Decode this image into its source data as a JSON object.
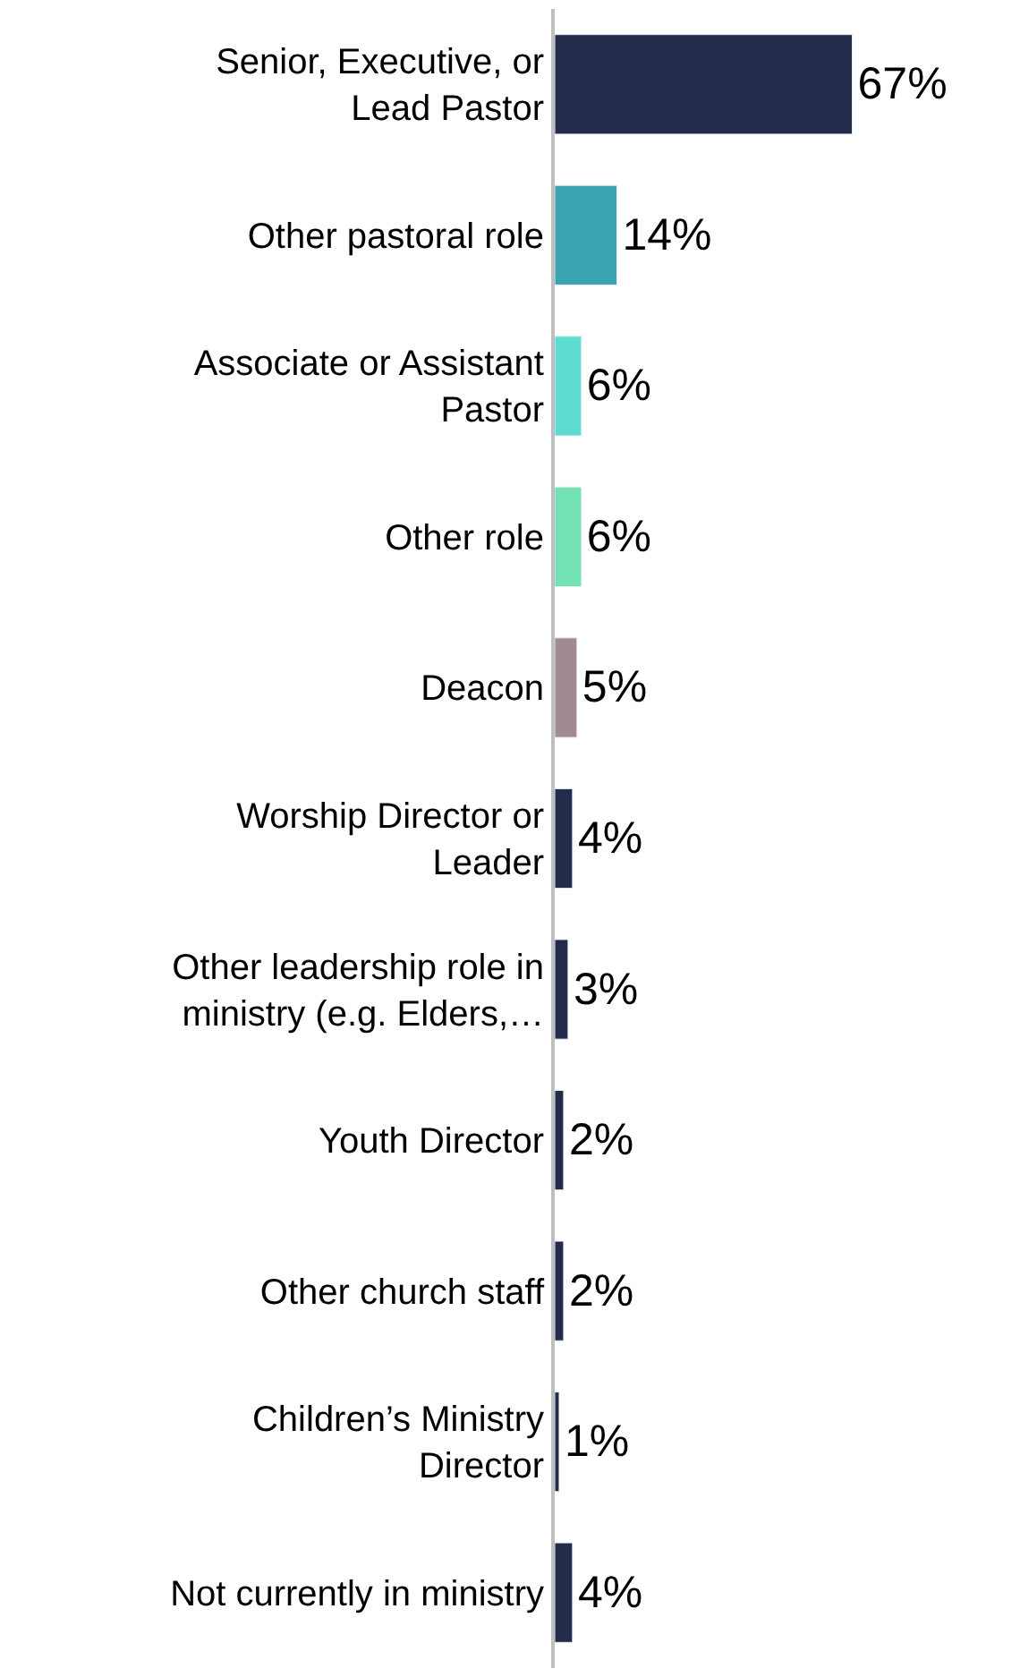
{
  "chart_data": {
    "type": "bar",
    "orientation": "horizontal",
    "categories": [
      "Senior, Executive, or\nLead Pastor",
      "Other pastoral role",
      "Associate or Assistant\nPastor",
      "Other role",
      "Deacon",
      "Worship Director or\nLeader",
      "Other leadership role in\nministry (e.g. Elders,…",
      "Youth Director",
      "Other church staff",
      "Children’s Ministry\nDirector",
      "Not currently in ministry"
    ],
    "values": [
      67,
      14,
      6,
      6,
      5,
      4,
      3,
      2,
      2,
      1,
      4
    ],
    "colors": [
      "#232d4b",
      "#3aa5b1",
      "#5edcd0",
      "#72e2b2",
      "#a18a93",
      "#232d4b",
      "#232d4b",
      "#232d4b",
      "#232d4b",
      "#232d4b",
      "#232d4b"
    ],
    "value_labels": [
      "67%",
      "14%",
      "6%",
      "6%",
      "5%",
      "4%",
      "3%",
      "2%",
      "2%",
      "1%",
      "4%"
    ],
    "tick_labels": "y",
    "legend": false
  }
}
